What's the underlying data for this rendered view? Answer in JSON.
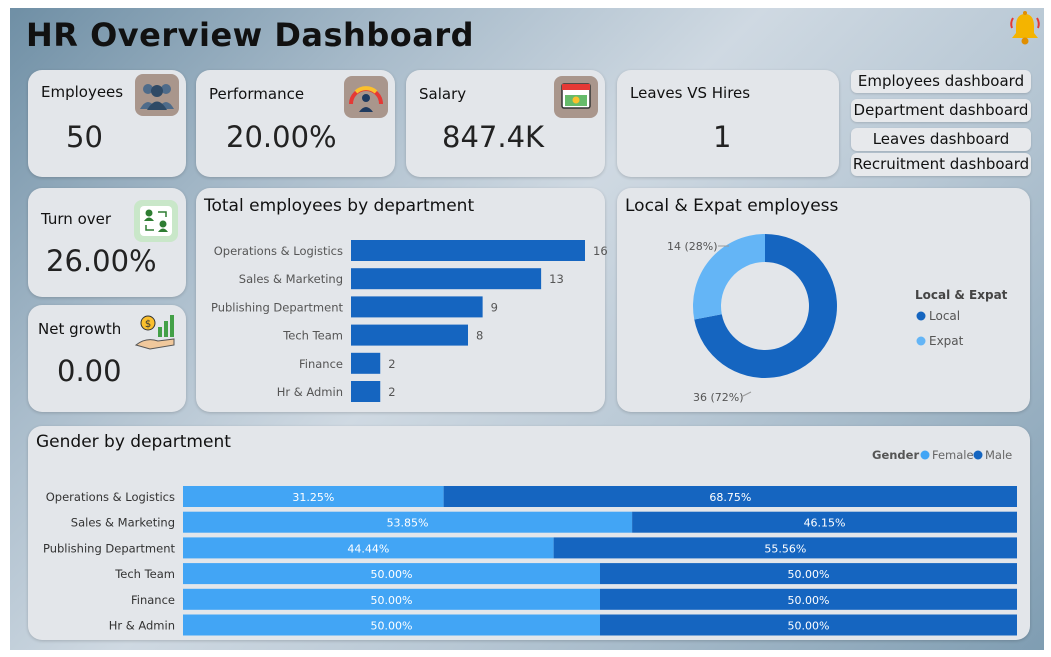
{
  "header": {
    "title": "HR Overview Dashboard"
  },
  "kpis": {
    "employees": {
      "label": "Employees",
      "value": "50",
      "icon": "people-icon"
    },
    "performance": {
      "label": "Performance",
      "value": "20.00%",
      "icon": "gauge-icon"
    },
    "salary": {
      "label": "Salary",
      "value": "847.4K",
      "icon": "money-calendar-icon"
    },
    "leaves_hires": {
      "label": "Leaves VS Hires",
      "value": "1"
    },
    "turnover": {
      "label": "Turn over",
      "value": "26.00%",
      "icon": "swap-people-icon"
    },
    "net_growth": {
      "label": "Net growth",
      "value": "0.00",
      "icon": "growth-hand-icon"
    }
  },
  "nav": {
    "employees": "Employees dashboard",
    "department": "Department dashboard",
    "leaves": "Leaves dashboard",
    "recruitment": "Recruitment dashboard"
  },
  "colors": {
    "dark_blue": "#1565c0",
    "light_blue": "#42a5f5",
    "expat_blue": "#64b5f6",
    "card_bg": "#e3e6ea",
    "bell": "#f4b400"
  },
  "chart_data": [
    {
      "type": "bar",
      "orientation": "horizontal",
      "title": "Total employees by department",
      "categories": [
        "Operations & Logistics",
        "Sales & Marketing",
        "Publishing Department",
        "Tech Team",
        "Finance",
        "Hr & Admin"
      ],
      "values": [
        16,
        13,
        9,
        8,
        2,
        2
      ],
      "xlim": [
        0,
        16
      ]
    },
    {
      "type": "pie",
      "donut": true,
      "title": "Local & Expat employess",
      "legend_title": "Local & Expat",
      "legend_position": "right",
      "slices": [
        {
          "name": "Local",
          "value": 36,
          "label": "36 (72%)",
          "color": "#1565c0"
        },
        {
          "name": "Expat",
          "value": 14,
          "label": "14 (28%)",
          "color": "#64b5f6"
        }
      ]
    },
    {
      "type": "bar",
      "orientation": "horizontal",
      "stacked": "100%",
      "title": "Gender by department",
      "legend_title": "Gender",
      "legend_position": "top-right",
      "categories": [
        "Operations & Logistics",
        "Sales & Marketing",
        "Publishing Department",
        "Tech Team",
        "Finance",
        "Hr & Admin"
      ],
      "series": [
        {
          "name": "Female",
          "color": "#42a5f5",
          "values": [
            31.25,
            53.85,
            44.44,
            50.0,
            50.0,
            50.0
          ],
          "labels": [
            "31.25%",
            "53.85%",
            "44.44%",
            "50.00%",
            "50.00%",
            "50.00%"
          ]
        },
        {
          "name": "Male",
          "color": "#1565c0",
          "values": [
            68.75,
            46.15,
            55.56,
            50.0,
            50.0,
            50.0
          ],
          "labels": [
            "68.75%",
            "46.15%",
            "55.56%",
            "50.00%",
            "50.00%",
            "50.00%"
          ]
        }
      ]
    }
  ]
}
